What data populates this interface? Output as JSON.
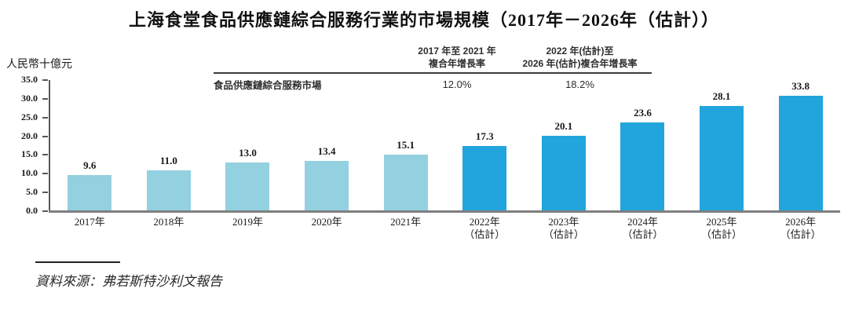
{
  "title": "上海食堂食品供應鏈綜合服務行業的市場規模（2017年－2026年（估計））",
  "cagr_table": {
    "row_label": "食品供應鏈綜合服務市場",
    "columns": [
      {
        "header_line1": "2017 年至 2021 年",
        "header_line2": "複合年增長率",
        "value": "12.0%"
      },
      {
        "header_line1": "2022 年(估計)至",
        "header_line2": "2026 年(估計)複合年增長率",
        "value": "18.2%"
      }
    ]
  },
  "source": "資料來源：弗若斯特沙利文報告",
  "chart_data": {
    "type": "bar",
    "title": "上海食堂食品供應鏈綜合服務行業的市場規模（2017年－2026年（估計））",
    "ylabel": "人民幣十億元",
    "xlabel": "",
    "ylim": [
      0,
      35
    ],
    "yticks": [
      "35.0",
      "30.0",
      "25.0",
      "20.0",
      "15.0",
      "10.0",
      "5.0",
      "0.0"
    ],
    "grid": false,
    "legend_position": "none",
    "categories": [
      "2017年",
      "2018年",
      "2019年",
      "2020年",
      "2021年",
      "2022年（估計）",
      "2023年（估計）",
      "2024年（估計）",
      "2025年（估計）",
      "2026年（估計）"
    ],
    "values": [
      9.6,
      11.0,
      13.0,
      13.4,
      15.1,
      17.3,
      20.1,
      23.6,
      28.1,
      33.8
    ],
    "estimate_start_index": 5,
    "estimate_suffix": "（估計）",
    "colors": {
      "historical": "#93D0E0",
      "estimate": "#21A5DC"
    },
    "cagr_2017_2021": "12.0%",
    "cagr_2022_2026": "18.2%"
  }
}
